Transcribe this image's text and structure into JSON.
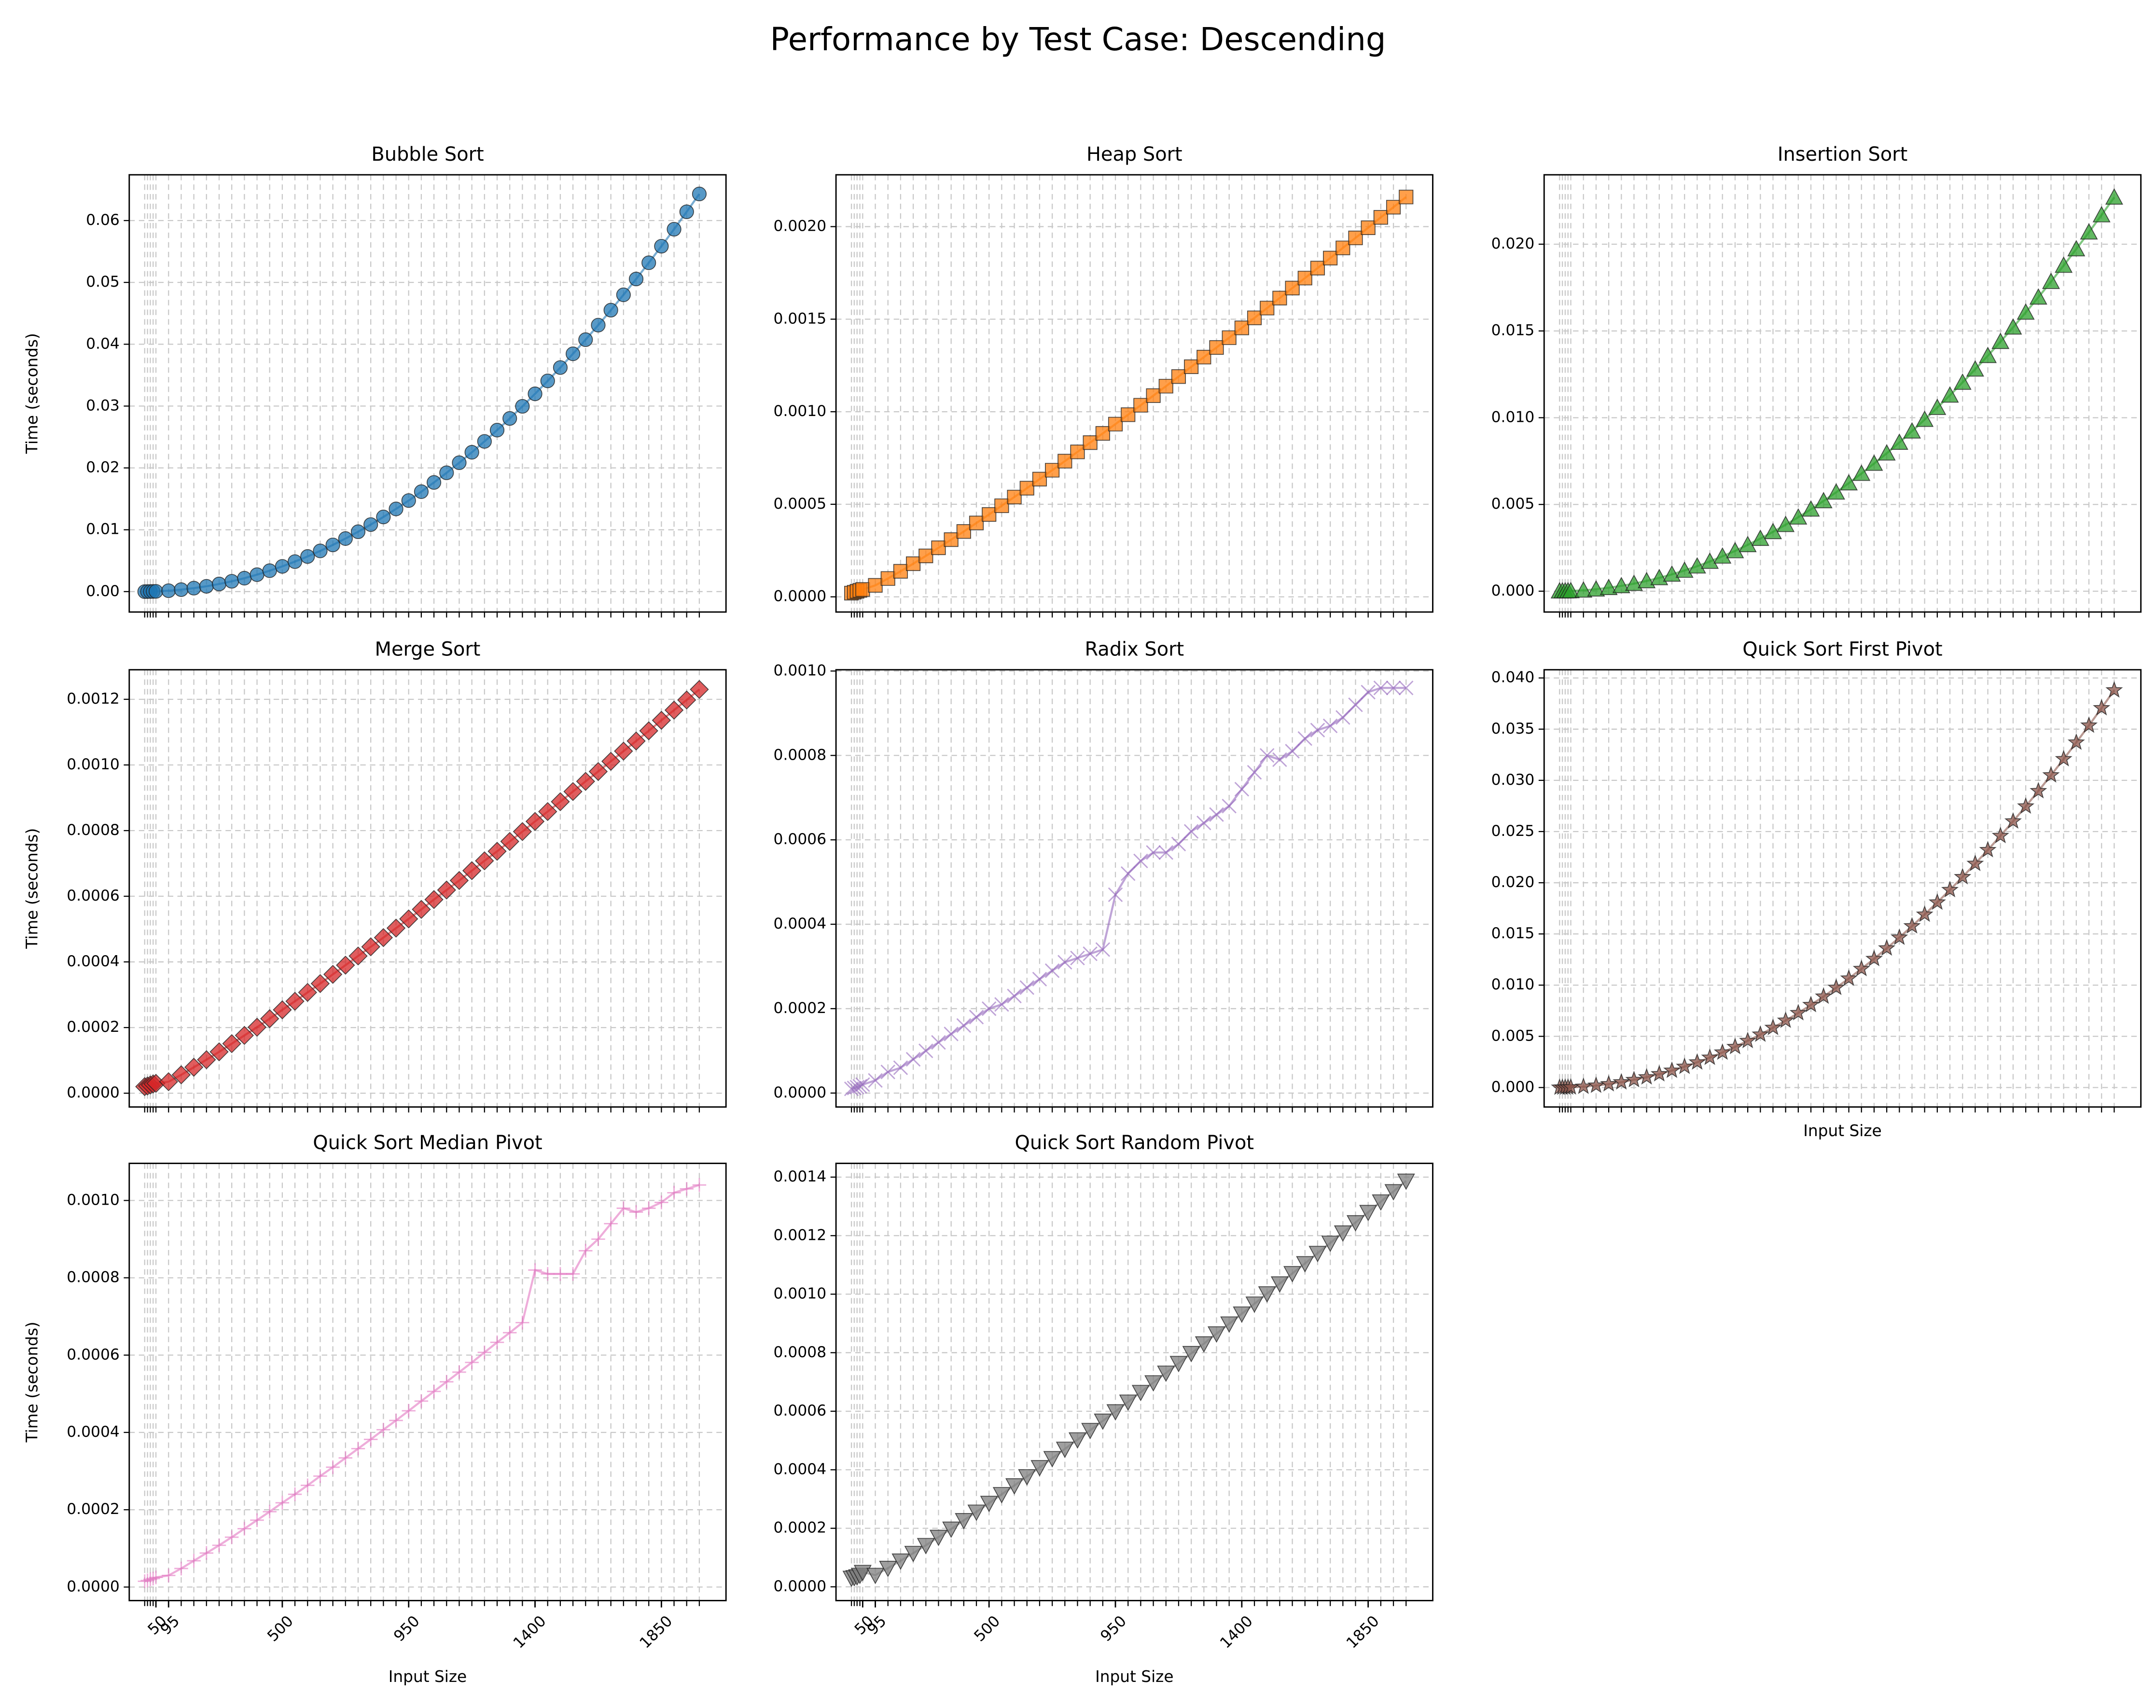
{
  "title": "Performance by Test Case: Descending",
  "chart_data": [
    {
      "type": "line",
      "title": "Bubble Sort",
      "ylabel": "Time (seconds)",
      "color": "#1f77b4",
      "marker": "circle",
      "x": [
        10,
        20,
        30,
        40,
        50,
        95,
        140,
        185,
        230,
        275,
        320,
        365,
        410,
        455,
        500,
        545,
        590,
        635,
        680,
        725,
        770,
        815,
        860,
        905,
        950,
        995,
        1040,
        1085,
        1130,
        1175,
        1220,
        1265,
        1310,
        1355,
        1400,
        1445,
        1490,
        1535,
        1580,
        1625,
        1670,
        1715,
        1760,
        1805,
        1850,
        1895,
        1940,
        1985
      ],
      "values": [
        2e-06,
        7e-06,
        1.5e-05,
        2.6e-05,
        4e-05,
        0.000147,
        0.00032,
        0.00056,
        0.00086,
        0.00123,
        0.00167,
        0.00217,
        0.00274,
        0.00338,
        0.00408,
        0.00485,
        0.00568,
        0.00658,
        0.00755,
        0.00858,
        0.00968,
        0.01084,
        0.01207,
        0.01337,
        0.01472,
        0.01616,
        0.01765,
        0.01921,
        0.02084,
        0.02253,
        0.02429,
        0.02611,
        0.028,
        0.02996,
        0.03198,
        0.03407,
        0.03623,
        0.03845,
        0.04074,
        0.04309,
        0.04551,
        0.04799,
        0.05055,
        0.05317,
        0.05585,
        0.0586,
        0.06142,
        0.0643
      ],
      "xlim": [
        -45,
        2080
      ],
      "ylim": [
        -0.0033,
        0.0674
      ],
      "yticks": [
        {
          "value": 0,
          "label": "0.00"
        },
        {
          "value": 0.01,
          "label": "0.01"
        },
        {
          "value": 0.02,
          "label": "0.02"
        },
        {
          "value": 0.03,
          "label": "0.03"
        },
        {
          "value": 0.04,
          "label": "0.04"
        },
        {
          "value": 0.05,
          "label": "0.05"
        },
        {
          "value": 0.06,
          "label": "0.06"
        }
      ],
      "grid": true
    },
    {
      "type": "line",
      "title": "Heap Sort",
      "color": "#ff7f0e",
      "marker": "square",
      "x": [
        10,
        20,
        30,
        40,
        50,
        95,
        140,
        185,
        230,
        275,
        320,
        365,
        410,
        455,
        500,
        545,
        590,
        635,
        680,
        725,
        770,
        815,
        860,
        905,
        950,
        995,
        1040,
        1085,
        1130,
        1175,
        1220,
        1265,
        1310,
        1355,
        1400,
        1445,
        1490,
        1535,
        1580,
        1625,
        1670,
        1715,
        1760,
        1805,
        1850,
        1895,
        1940,
        1985
      ],
      "values": [
        2e-05,
        2.5e-05,
        3e-05,
        3.5e-05,
        4e-05,
        6.2e-05,
        9.9e-05,
        0.000138,
        0.000179,
        0.000221,
        0.000265,
        0.000309,
        0.000353,
        0.000399,
        0.000445,
        0.000492,
        0.000539,
        0.000587,
        0.000636,
        0.000684,
        0.000733,
        0.000783,
        0.000833,
        0.000883,
        0.000933,
        0.000984,
        0.001035,
        0.001087,
        0.001138,
        0.00119,
        0.001243,
        0.001295,
        0.001347,
        0.0014,
        0.001453,
        0.001507,
        0.00156,
        0.001614,
        0.001668,
        0.001722,
        0.001776,
        0.00183,
        0.001885,
        0.001939,
        0.001994,
        0.00205,
        0.002105,
        0.00216
      ],
      "xlim": [
        -45,
        2080
      ],
      "ylim": [
        -8.2e-05,
        0.00228
      ],
      "yticks": [
        {
          "value": 0,
          "label": "0.0000"
        },
        {
          "value": 0.0005,
          "label": "0.0005"
        },
        {
          "value": 0.001,
          "label": "0.0010"
        },
        {
          "value": 0.0015,
          "label": "0.0015"
        },
        {
          "value": 0.002,
          "label": "0.0020"
        }
      ],
      "grid": true
    },
    {
      "type": "line",
      "title": "Insertion Sort",
      "color": "#2ca02c",
      "marker": "triangle-up",
      "x": [
        10,
        20,
        30,
        40,
        50,
        95,
        140,
        185,
        230,
        275,
        320,
        365,
        410,
        455,
        500,
        545,
        590,
        635,
        680,
        725,
        770,
        815,
        860,
        905,
        950,
        995,
        1040,
        1085,
        1130,
        1175,
        1220,
        1265,
        1310,
        1355,
        1400,
        1445,
        1490,
        1535,
        1580,
        1625,
        1670,
        1715,
        1760,
        1805,
        1850,
        1895,
        1940,
        1985
      ],
      "values": [
        1e-06,
        3e-06,
        5e-06,
        9e-06,
        1.4e-05,
        5.2e-05,
        0.000113,
        0.000197,
        0.000305,
        0.000436,
        0.00059,
        0.000767,
        0.000968,
        0.001193,
        0.00144,
        0.00171,
        0.00201,
        0.00232,
        0.00267,
        0.00303,
        0.00342,
        0.00383,
        0.00426,
        0.00472,
        0.0052,
        0.0057,
        0.00623,
        0.00678,
        0.00736,
        0.00795,
        0.00857,
        0.00922,
        0.00989,
        0.01058,
        0.01129,
        0.01203,
        0.01279,
        0.01357,
        0.01438,
        0.01521,
        0.01607,
        0.01694,
        0.01784,
        0.01877,
        0.01972,
        0.02069,
        0.02168,
        0.0227
      ],
      "xlim": [
        -45,
        2080
      ],
      "ylim": [
        -0.0012,
        0.024
      ],
      "yticks": [
        {
          "value": 0,
          "label": "0.000"
        },
        {
          "value": 0.005,
          "label": "0.005"
        },
        {
          "value": 0.01,
          "label": "0.010"
        },
        {
          "value": 0.015,
          "label": "0.015"
        },
        {
          "value": 0.02,
          "label": "0.020"
        }
      ],
      "grid": true
    },
    {
      "type": "line",
      "title": "Merge Sort",
      "ylabel": "Time (seconds)",
      "color": "#d62728",
      "marker": "diamond",
      "x": [
        10,
        20,
        30,
        40,
        50,
        95,
        140,
        185,
        230,
        275,
        320,
        365,
        410,
        455,
        500,
        545,
        590,
        635,
        680,
        725,
        770,
        815,
        860,
        905,
        950,
        995,
        1040,
        1085,
        1130,
        1175,
        1220,
        1265,
        1310,
        1355,
        1400,
        1445,
        1490,
        1535,
        1580,
        1625,
        1670,
        1715,
        1760,
        1805,
        1850,
        1895,
        1940,
        1985
      ],
      "values": [
        2e-05,
        2.2e-05,
        2.5e-05,
        2.8e-05,
        3e-05,
        3.5e-05,
        5.6e-05,
        7.9e-05,
        0.000102,
        0.000126,
        0.000151,
        0.000176,
        0.000201,
        0.000227,
        0.000254,
        0.00028,
        0.000307,
        0.000334,
        0.000362,
        0.00039,
        0.000418,
        0.000446,
        0.000474,
        0.000503,
        0.000531,
        0.00056,
        0.00059,
        0.000619,
        0.000648,
        0.000678,
        0.000708,
        0.000737,
        0.000767,
        0.000797,
        0.000828,
        0.000858,
        0.000888,
        0.000919,
        0.00095,
        0.00098,
        0.001011,
        0.001042,
        0.001073,
        0.001104,
        0.001136,
        0.001167,
        0.001198,
        0.00123
      ],
      "xlim": [
        -45,
        2080
      ],
      "ylim": [
        -4.2e-05,
        0.00129
      ],
      "yticks": [
        {
          "value": 0,
          "label": "0.0000"
        },
        {
          "value": 0.0002,
          "label": "0.0002"
        },
        {
          "value": 0.0004,
          "label": "0.0004"
        },
        {
          "value": 0.0006,
          "label": "0.0006"
        },
        {
          "value": 0.0008,
          "label": "0.0008"
        },
        {
          "value": 0.001,
          "label": "0.0010"
        },
        {
          "value": 0.0012,
          "label": "0.0012"
        }
      ],
      "grid": true
    },
    {
      "type": "line",
      "title": "Radix Sort",
      "color": "#9467bd",
      "marker": "x",
      "x": [
        10,
        20,
        30,
        40,
        50,
        95,
        140,
        185,
        230,
        275,
        320,
        365,
        410,
        455,
        500,
        545,
        590,
        635,
        680,
        725,
        770,
        815,
        860,
        905,
        950,
        995,
        1040,
        1085,
        1130,
        1175,
        1220,
        1265,
        1310,
        1355,
        1400,
        1445,
        1490,
        1535,
        1580,
        1625,
        1670,
        1715,
        1760,
        1805,
        1850,
        1895,
        1940,
        1985
      ],
      "values": [
        1e-05,
        1.2e-05,
        1.4e-05,
        1.6e-05,
        2e-05,
        3e-05,
        5e-05,
        6e-05,
        8e-05,
        0.0001,
        0.00012,
        0.00014,
        0.00016,
        0.00018,
        0.0002,
        0.00021,
        0.00023,
        0.00025,
        0.00027,
        0.00029,
        0.00031,
        0.00032,
        0.00033,
        0.00034,
        0.00047,
        0.00052,
        0.00055,
        0.00057,
        0.00057,
        0.00059,
        0.00062,
        0.00064,
        0.00066,
        0.00068,
        0.00072,
        0.00076,
        0.0008,
        0.00079,
        0.00081,
        0.00084,
        0.00086,
        0.00087,
        0.00089,
        0.00092,
        0.00095,
        0.00096,
        0.00096,
        0.00096
      ],
      "xlim": [
        -45,
        2080
      ],
      "ylim": [
        -3.3e-05,
        0.001003
      ],
      "yticks": [
        {
          "value": 0,
          "label": "0.0000"
        },
        {
          "value": 0.0002,
          "label": "0.0002"
        },
        {
          "value": 0.0004,
          "label": "0.0004"
        },
        {
          "value": 0.0006,
          "label": "0.0006"
        },
        {
          "value": 0.0008,
          "label": "0.0008"
        },
        {
          "value": 0.001,
          "label": "0.0010"
        }
      ],
      "grid": true
    },
    {
      "type": "line",
      "title": "Quick Sort First Pivot",
      "xlabel": "Input Size",
      "color": "#8c564b",
      "marker": "star",
      "x": [
        10,
        20,
        30,
        40,
        50,
        95,
        140,
        185,
        230,
        275,
        320,
        365,
        410,
        455,
        500,
        545,
        590,
        635,
        680,
        725,
        770,
        815,
        860,
        905,
        950,
        995,
        1040,
        1085,
        1130,
        1175,
        1220,
        1265,
        1310,
        1355,
        1400,
        1445,
        1490,
        1535,
        1580,
        1625,
        1670,
        1715,
        1760,
        1805,
        1850,
        1895,
        1940,
        1985
      ],
      "values": [
        1e-06,
        4e-06,
        9e-06,
        1.6e-05,
        2.5e-05,
        8.9e-05,
        0.000193,
        0.000337,
        0.000521,
        0.000745,
        0.001008,
        0.001312,
        0.001655,
        0.002039,
        0.002462,
        0.002925,
        0.003428,
        0.00397,
        0.00456,
        0.00518,
        0.00584,
        0.00654,
        0.00728,
        0.00807,
        0.00889,
        0.00975,
        0.01065,
        0.01159,
        0.01257,
        0.0136,
        0.01465,
        0.01576,
        0.0169,
        0.01808,
        0.0193,
        0.02056,
        0.02186,
        0.0232,
        0.02458,
        0.026,
        0.02746,
        0.02896,
        0.0305,
        0.03208,
        0.0337,
        0.03536,
        0.03706,
        0.0388
      ],
      "xlim": [
        -45,
        2080
      ],
      "ylim": [
        -0.0019,
        0.0408
      ],
      "yticks": [
        {
          "value": 0,
          "label": "0.000"
        },
        {
          "value": 0.005,
          "label": "0.005"
        },
        {
          "value": 0.01,
          "label": "0.010"
        },
        {
          "value": 0.015,
          "label": "0.015"
        },
        {
          "value": 0.02,
          "label": "0.020"
        },
        {
          "value": 0.025,
          "label": "0.025"
        },
        {
          "value": 0.03,
          "label": "0.030"
        },
        {
          "value": 0.035,
          "label": "0.035"
        },
        {
          "value": 0.04,
          "label": "0.040"
        }
      ],
      "grid": true
    },
    {
      "type": "line",
      "title": "Quick Sort Median Pivot",
      "ylabel": "Time (seconds)",
      "xlabel": "Input Size",
      "color": "#e377c2",
      "marker": "plus",
      "x": [
        10,
        20,
        30,
        40,
        50,
        95,
        140,
        185,
        230,
        275,
        320,
        365,
        410,
        455,
        500,
        545,
        590,
        635,
        680,
        725,
        770,
        815,
        860,
        905,
        950,
        995,
        1040,
        1085,
        1130,
        1175,
        1220,
        1265,
        1310,
        1355,
        1400,
        1445,
        1490,
        1535,
        1580,
        1625,
        1670,
        1715,
        1760,
        1805,
        1850,
        1895,
        1940,
        1985
      ],
      "values": [
        1.5e-05,
        1.7e-05,
        2e-05,
        2.2e-05,
        2.5e-05,
        3e-05,
        4.8e-05,
        6.8e-05,
        8.8e-05,
        0.000108,
        0.000129,
        0.000151,
        0.000173,
        0.000195,
        0.000218,
        0.00024,
        0.000263,
        0.000287,
        0.00031,
        0.000334,
        0.000358,
        0.000382,
        0.000407,
        0.000431,
        0.000456,
        0.000481,
        0.000506,
        0.000531,
        0.000556,
        0.000581,
        0.000607,
        0.000633,
        0.000658,
        0.000684,
        0.00082,
        0.00081,
        0.00081,
        0.00081,
        0.00087,
        0.0009,
        0.00094,
        0.00098,
        0.00097,
        0.00098,
        0.000995,
        0.00102,
        0.00103,
        0.00104
      ],
      "xlim": [
        -45,
        2080
      ],
      "ylim": [
        -3.5e-05,
        0.001096
      ],
      "xticks": [
        50,
        95,
        500,
        950,
        1400,
        1850
      ],
      "yticks": [
        {
          "value": 0,
          "label": "0.0000"
        },
        {
          "value": 0.0002,
          "label": "0.0002"
        },
        {
          "value": 0.0004,
          "label": "0.0004"
        },
        {
          "value": 0.0006,
          "label": "0.0006"
        },
        {
          "value": 0.0008,
          "label": "0.0008"
        },
        {
          "value": 0.001,
          "label": "0.0010"
        }
      ],
      "grid": true
    },
    {
      "type": "line",
      "title": "Quick Sort Random Pivot",
      "xlabel": "Input Size",
      "color": "#7f7f7f",
      "marker": "triangle-down",
      "x": [
        10,
        20,
        30,
        40,
        50,
        95,
        140,
        185,
        230,
        275,
        320,
        365,
        410,
        455,
        500,
        545,
        590,
        635,
        680,
        725,
        770,
        815,
        860,
        905,
        950,
        995,
        1040,
        1085,
        1130,
        1175,
        1220,
        1265,
        1310,
        1355,
        1400,
        1445,
        1490,
        1535,
        1580,
        1625,
        1670,
        1715,
        1760,
        1805,
        1850,
        1895,
        1940,
        1985
      ],
      "values": [
        3e-05,
        3.2e-05,
        3.5e-05,
        4e-05,
        5e-05,
        4e-05,
        6.4e-05,
        8.9e-05,
        0.000115,
        0.000142,
        0.00017,
        0.000198,
        0.000227,
        0.000256,
        0.000286,
        0.000316,
        0.000346,
        0.000377,
        0.000408,
        0.000439,
        0.000471,
        0.000503,
        0.000535,
        0.000567,
        0.000599,
        0.000632,
        0.000665,
        0.000698,
        0.000731,
        0.000764,
        0.000798,
        0.000831,
        0.000865,
        0.000899,
        0.000933,
        0.000967,
        0.001002,
        0.001036,
        0.001071,
        0.001105,
        0.00114,
        0.001175,
        0.00121,
        0.001245,
        0.00128,
        0.001316,
        0.001351,
        0.001387
      ],
      "xlim": [
        -45,
        2080
      ],
      "ylim": [
        -4.7e-05,
        0.001447
      ],
      "xticks": [
        50,
        95,
        500,
        950,
        1400,
        1850
      ],
      "yticks": [
        {
          "value": 0,
          "label": "0.0000"
        },
        {
          "value": 0.0002,
          "label": "0.0002"
        },
        {
          "value": 0.0004,
          "label": "0.0004"
        },
        {
          "value": 0.0006,
          "label": "0.0006"
        },
        {
          "value": 0.0008,
          "label": "0.0008"
        },
        {
          "value": 0.001,
          "label": "0.0010"
        },
        {
          "value": 0.0012,
          "label": "0.0012"
        },
        {
          "value": 0.0014,
          "label": "0.0014"
        }
      ],
      "grid": true
    }
  ]
}
